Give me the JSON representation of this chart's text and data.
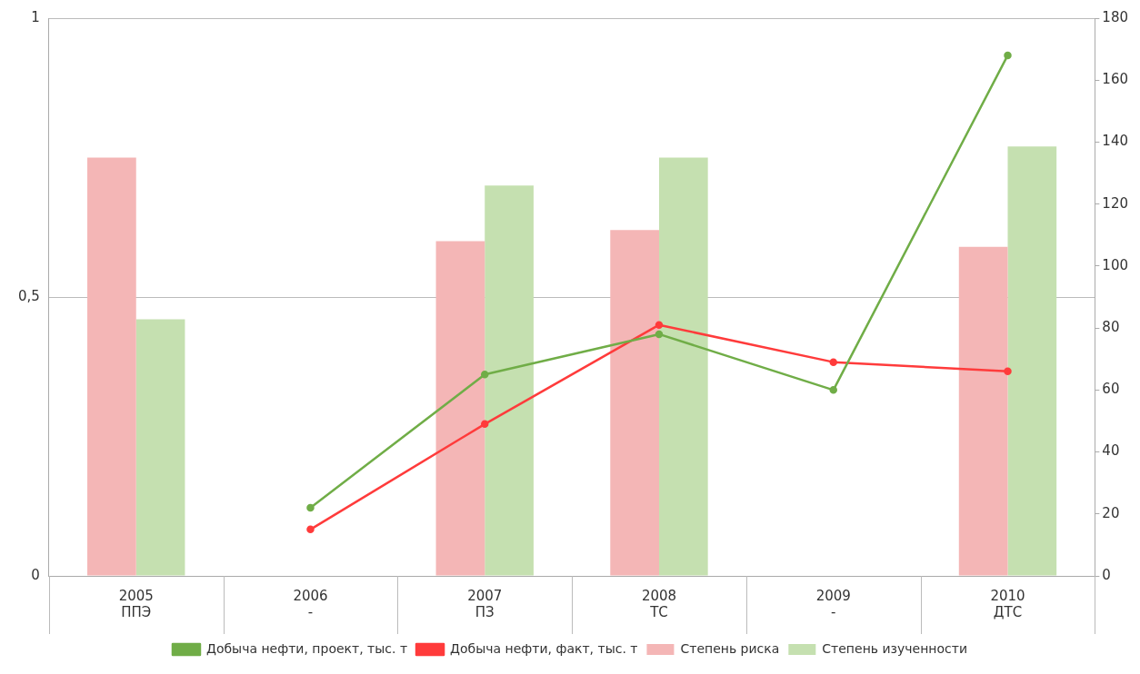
{
  "chart_data": {
    "type": "bar",
    "categories": [
      "2005\nППЭ",
      "2006\n-",
      "2007\nПЗ",
      "2008\nТС",
      "2009\n-",
      "2010\nДТС"
    ],
    "series": [
      {
        "name": "Степень риска",
        "color": "#f4b6b6",
        "values": [
          0.75,
          null,
          0.6,
          0.62,
          null,
          0.59
        ]
      },
      {
        "name": "Степень изученности",
        "color": "#c5e0b0",
        "values": [
          0.46,
          null,
          0.7,
          0.75,
          null,
          0.77
        ]
      },
      {
        "name": "Добыча нефти, проект, тыс. т",
        "type": "line",
        "axis": "y2",
        "color": "#70ad47",
        "values": [
          null,
          22,
          65,
          78,
          60,
          168
        ]
      },
      {
        "name": "Добыча нефти, факт, тыс. т",
        "type": "line",
        "axis": "y2",
        "color": "#ff3b3b",
        "values": [
          null,
          15,
          49,
          81,
          69,
          66
        ]
      }
    ],
    "ylim": [
      0,
      1
    ],
    "yticks": [
      0,
      {
        "value": 0.5,
        "label": "0,5"
      },
      1
    ],
    "y2lim": [
      0,
      180
    ],
    "y2ticks": [
      0,
      20,
      40,
      60,
      80,
      100,
      120,
      140,
      160,
      180
    ],
    "grid": "y",
    "legend": "bottom",
    "marker": "circle",
    "line_style": "solid"
  }
}
